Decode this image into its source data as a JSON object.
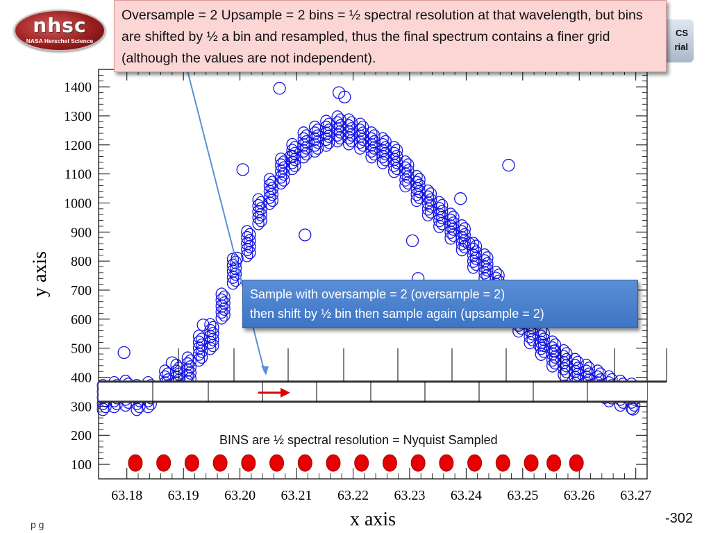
{
  "logos": {
    "left_title": "nhsc",
    "left_subtitle": "NASA Herschel Science",
    "right_line1": "CS",
    "right_line2": "rial"
  },
  "callouts": {
    "top": "Oversample = 2 Upsample = 2 bins = ½ spectral resolution at that wavelength, but bins are shifted by ½ a bin and resampled, thus the final spectrum contains a finer grid (although the values are not independent).",
    "middle_line1": "Sample with oversample = 2 (oversample = 2)",
    "middle_line2": "then shift by ½ bin then sample again (upsample = 2)",
    "bins": "BINS are ½ spectral resolution = Nyquist Sampled"
  },
  "page_number": "-302",
  "footer_fragment": "p g",
  "colors": {
    "scatter": "#1515e6",
    "bin_dots": "#e60000",
    "arrow_red": "#e00000",
    "pointer_blue": "#5b8fd6",
    "callout_top_bg": "#fcd5d5",
    "callout_mid_bg": "#4a80cc"
  },
  "chart_data": {
    "type": "scatter",
    "title": "",
    "xlabel": "x axis",
    "ylabel": "y axis",
    "xlim": [
      63.175,
      63.272
    ],
    "ylim": [
      50,
      1460
    ],
    "x_ticks": [
      "63.18",
      "63.19",
      "63.20",
      "63.21",
      "63.22",
      "63.23",
      "63.24",
      "63.25",
      "63.26",
      "63.27"
    ],
    "y_ticks": [
      "100",
      "200",
      "300",
      "400",
      "500",
      "600",
      "700",
      "800",
      "900",
      "1000",
      "1100",
      "1200",
      "1300",
      "1400"
    ],
    "grid": false,
    "series": [
      {
        "marker": "open-circle",
        "x": [
          63.176,
          63.178,
          63.18,
          63.182,
          63.184,
          63.187,
          63.189,
          63.191,
          63.193,
          63.195,
          63.197,
          63.199,
          63.2015,
          63.2035,
          63.2055,
          63.2075,
          63.2095,
          63.2115,
          63.2135,
          63.2155,
          63.2175,
          63.2195,
          63.2215,
          63.2235,
          63.2255,
          63.2275,
          63.2295,
          63.2315,
          63.2335,
          63.2355,
          63.2375,
          63.2395,
          63.2415,
          63.2435,
          63.2455,
          63.2475,
          63.2495,
          63.2515,
          63.2535,
          63.2555,
          63.2575,
          63.2595,
          63.2615,
          63.2635,
          63.2655,
          63.2675,
          63.2695
        ],
        "y": [
          330,
          340,
          345,
          330,
          340,
          380,
          400,
          425,
          500,
          540,
          645,
          765,
          860,
          970,
          1040,
          1110,
          1160,
          1200,
          1220,
          1240,
          1255,
          1245,
          1230,
          1200,
          1180,
          1150,
          1100,
          1050,
          1000,
          960,
          920,
          880,
          820,
          780,
          720,
          670,
          600,
          560,
          520,
          480,
          450,
          420,
          400,
          380,
          360,
          345,
          335
        ]
      },
      {
        "name": "",
        "marker": "open-circle-outlier",
        "x": [
          63.1795,
          63.188,
          63.1935,
          63.1995,
          63.2005,
          63.207,
          63.209,
          63.2115,
          63.2175,
          63.2185,
          63.2305,
          63.2315,
          63.239,
          63.2405,
          63.2475,
          63.253,
          63.2555,
          63.2575,
          63.2645,
          63.2695
        ],
        "y": [
          485,
          450,
          580,
          810,
          1115,
          1395,
          1160,
          890,
          1380,
          1365,
          870,
          740,
          1015,
          860,
          1130,
          510,
          490,
          370,
          330,
          290
        ]
      }
    ],
    "bin_dots": {
      "x": [
        63.1815,
        63.1865,
        63.1915,
        63.1965,
        63.2015,
        63.2065,
        63.2115,
        63.2165,
        63.2215,
        63.2265,
        63.2315,
        63.2365,
        63.2415,
        63.2465,
        63.2515,
        63.2555,
        63.2595
      ],
      "y": 100
    }
  }
}
